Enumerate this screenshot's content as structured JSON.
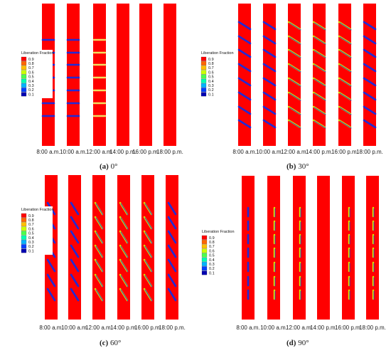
{
  "legend_title": "Liberation Fraction",
  "legend_levels": [
    {
      "label": "0.9",
      "color": "#ff0000"
    },
    {
      "label": "0.8",
      "color": "#ff6600"
    },
    {
      "label": "0.7",
      "color": "#ffbf00"
    },
    {
      "label": "0.6",
      "color": "#ccff00"
    },
    {
      "label": "0.5",
      "color": "#4dff4d"
    },
    {
      "label": "0.4",
      "color": "#00ffb3"
    },
    {
      "label": "0.3",
      "color": "#00b3ff"
    },
    {
      "label": "0.2",
      "color": "#0040ff"
    },
    {
      "label": "0.1",
      "color": "#0000b0"
    }
  ],
  "times": [
    "8:00 a.m.",
    "10:00 a.m.",
    "12:00 a.m.",
    "14:00 p.m.",
    "16:00 p.m.",
    "18:00 p.m."
  ],
  "panels": [
    {
      "tag": "(a)",
      "angle": "0°"
    },
    {
      "tag": "(b)",
      "angle": "30°"
    },
    {
      "tag": "(c)",
      "angle": "60°"
    },
    {
      "tag": "(d)",
      "angle": "90°"
    }
  ],
  "colors": {
    "melt": "#ff0000",
    "solid": "#1f2bd6",
    "mixed": "#d8f000",
    "fin_mix": "#f0e060"
  }
}
